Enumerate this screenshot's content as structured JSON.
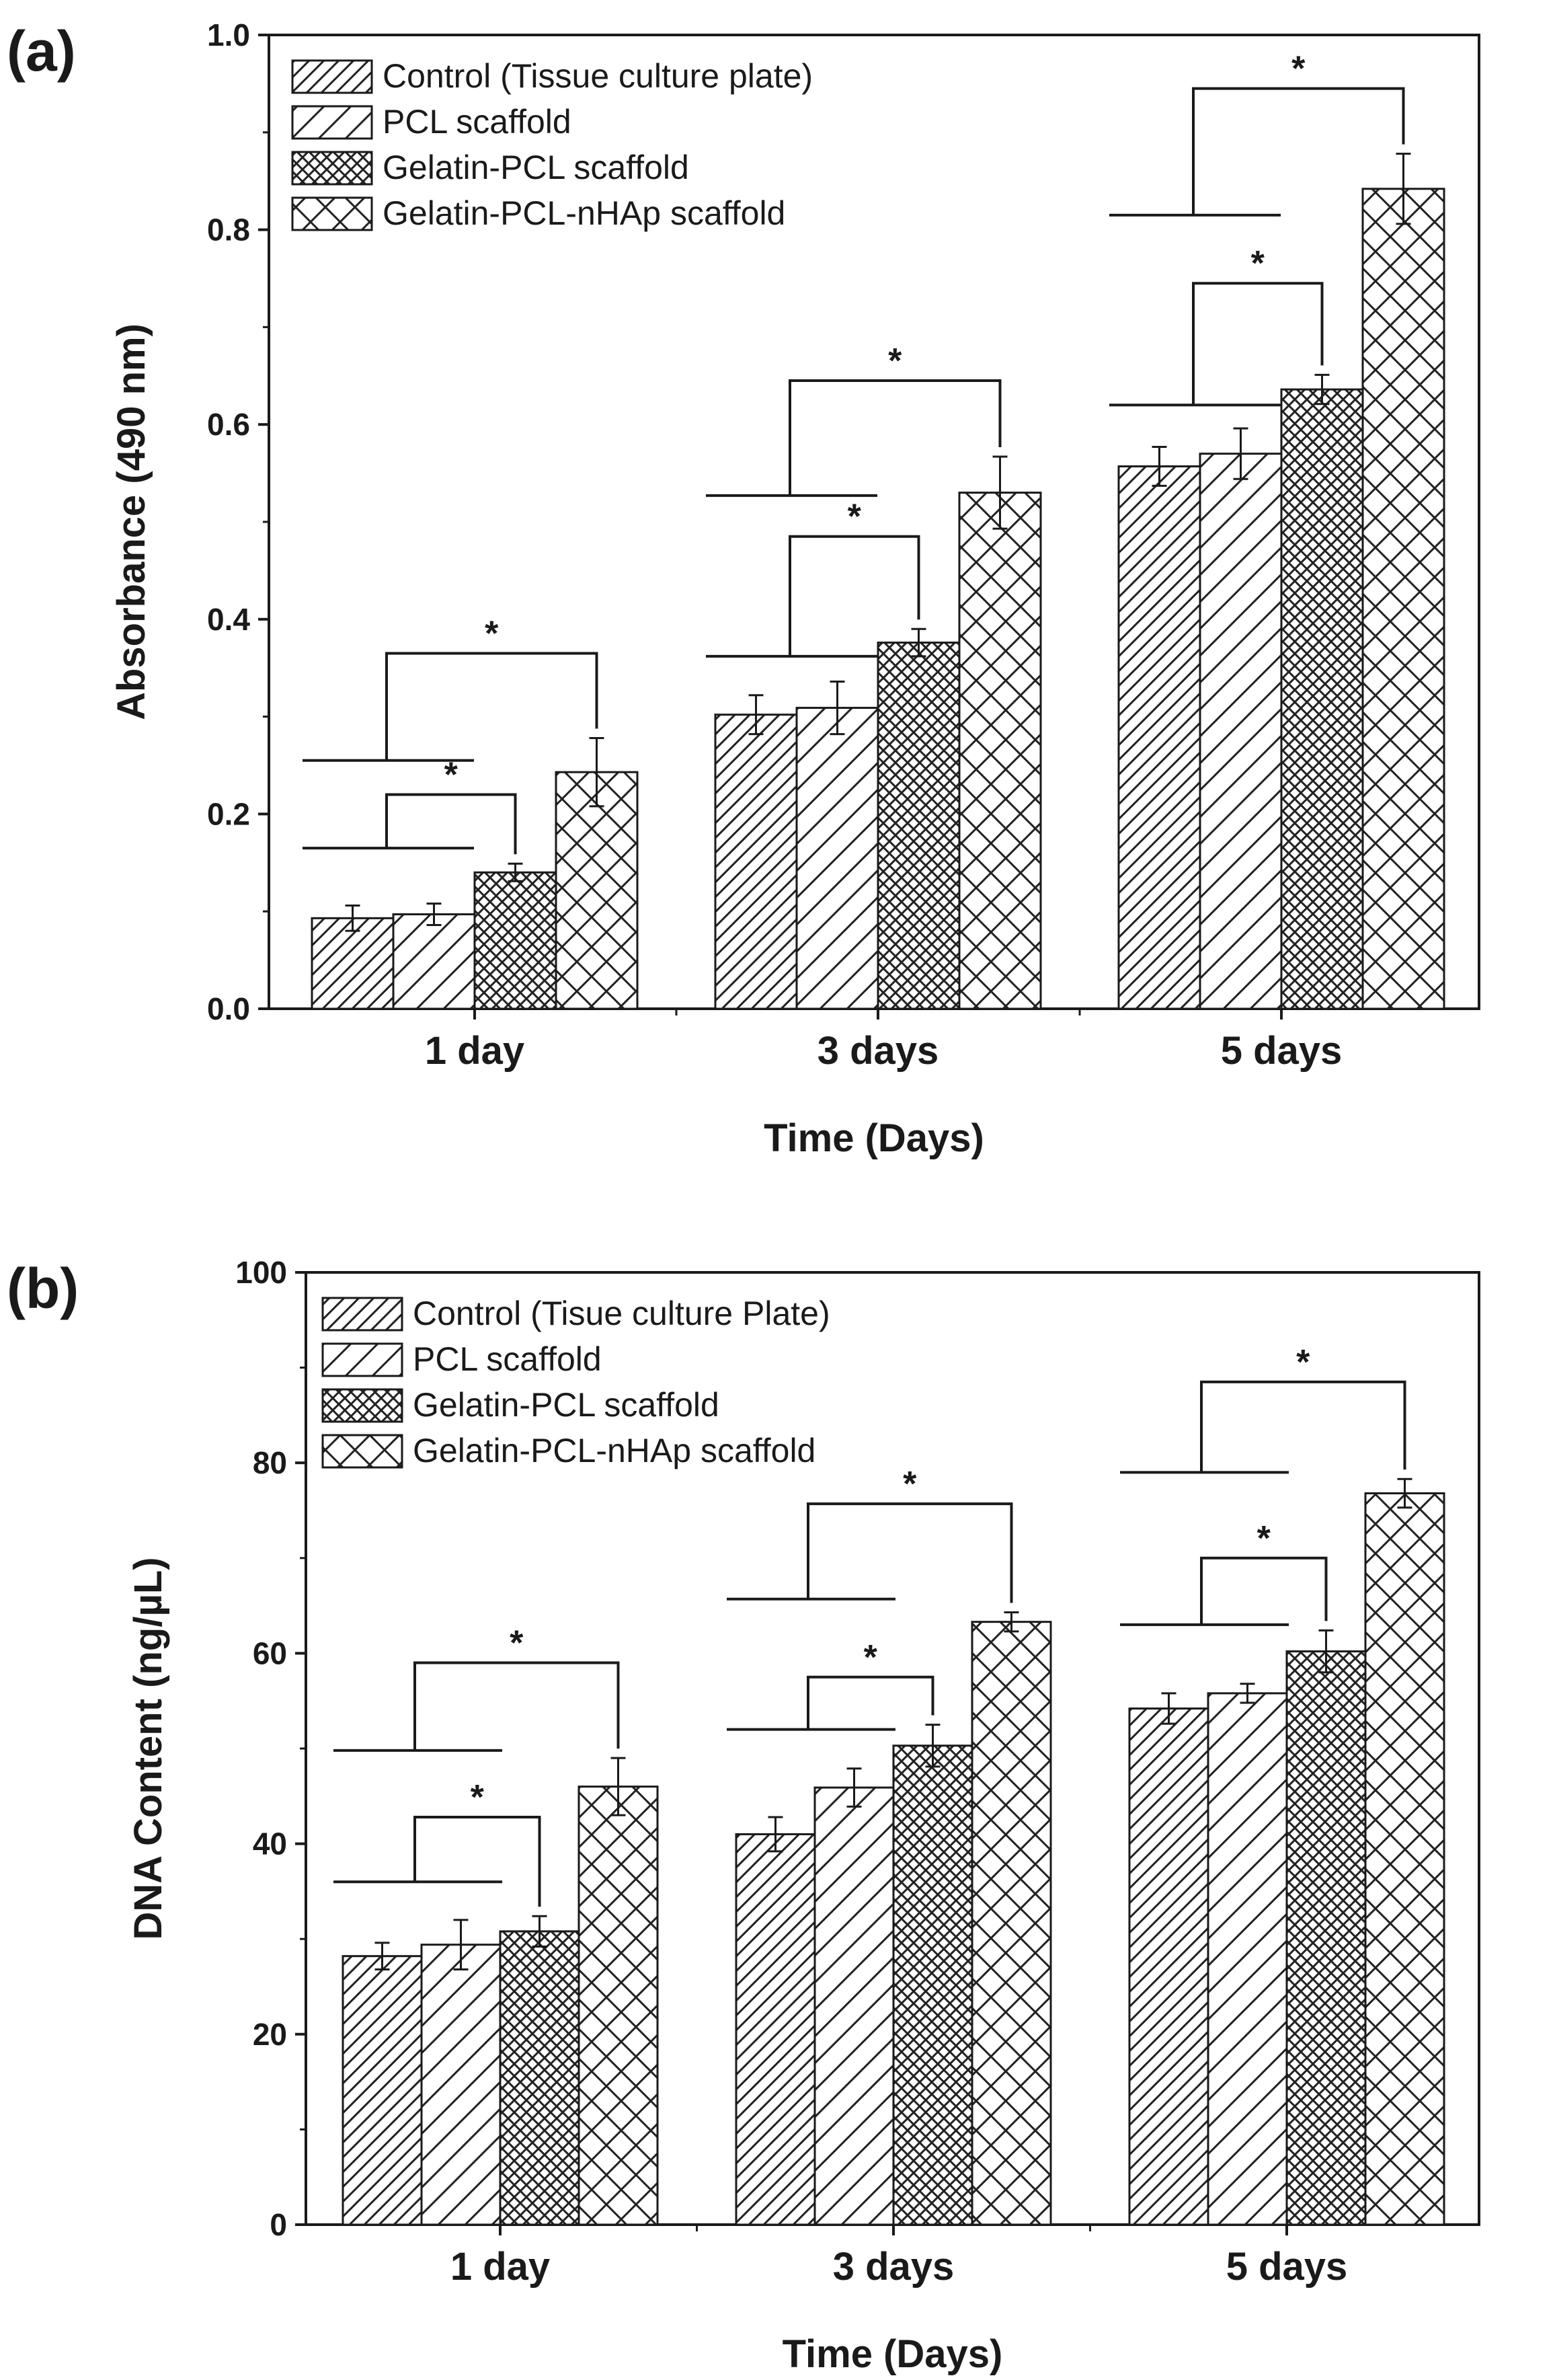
{
  "chart_data": [
    {
      "type": "bar",
      "panel_label": "(a)",
      "categories": [
        "1 day",
        "3 days",
        "5 days"
      ],
      "series": [
        {
          "name": "Control (Tissue culture plate)",
          "pattern": "hatch-dense",
          "values": [
            0.093,
            0.302,
            0.557
          ],
          "errors": [
            0.013,
            0.02,
            0.02
          ]
        },
        {
          "name": "PCL scaffold",
          "pattern": "hatch-sparse",
          "values": [
            0.097,
            0.309,
            0.57
          ],
          "errors": [
            0.011,
            0.027,
            0.026
          ]
        },
        {
          "name": "Gelatin-PCL scaffold",
          "pattern": "crosshatch-dense",
          "values": [
            0.14,
            0.376,
            0.636
          ],
          "errors": [
            0.009,
            0.014,
            0.015
          ]
        },
        {
          "name": "Gelatin-PCL-nHAp scaffold",
          "pattern": "crosshatch-sparse",
          "values": [
            0.243,
            0.53,
            0.842
          ],
          "errors": [
            0.035,
            0.037,
            0.036
          ]
        }
      ],
      "xlabel": "Time (Days)",
      "ylabel": "Absorbance (490 nm)",
      "ylim": [
        0.0,
        1.0
      ],
      "yticks": [
        0.0,
        0.2,
        0.4,
        0.6,
        0.8,
        1.0
      ],
      "ytick_labels": [
        "0.0",
        "0.2",
        "0.4",
        "0.6",
        "0.8",
        "1.0"
      ],
      "legend_position": "top-left",
      "significance": [
        {
          "category": 0,
          "from_series": 1,
          "to_series": 2,
          "level": 0.165,
          "bracket": 0.22,
          "label": "*"
        },
        {
          "category": 0,
          "from_series": 1,
          "to_series": 3,
          "level": 0.255,
          "bracket": 0.365,
          "label": "*"
        },
        {
          "category": 1,
          "from_series": 1,
          "to_series": 2,
          "level": 0.362,
          "bracket": 0.485,
          "label": "*"
        },
        {
          "category": 1,
          "from_series": 1,
          "to_series": 3,
          "level": 0.527,
          "bracket": 0.645,
          "label": "*"
        },
        {
          "category": 2,
          "from_series": 1,
          "to_series": 2,
          "level": 0.62,
          "bracket": 0.745,
          "label": "*"
        },
        {
          "category": 2,
          "from_series": 1,
          "to_series": 3,
          "level": 0.815,
          "bracket": 0.945,
          "label": "*"
        }
      ]
    },
    {
      "type": "bar",
      "panel_label": "(b)",
      "categories": [
        "1 day",
        "3 days",
        "5 days"
      ],
      "series": [
        {
          "name": "Control (Tisue culture Plate)",
          "pattern": "hatch-dense",
          "values": [
            28.2,
            41.0,
            54.2
          ],
          "errors": [
            1.4,
            1.8,
            1.6
          ]
        },
        {
          "name": "PCL scaffold",
          "pattern": "hatch-sparse",
          "values": [
            29.4,
            45.9,
            55.8
          ],
          "errors": [
            2.6,
            2.0,
            1.0
          ]
        },
        {
          "name": "Gelatin-PCL scaffold",
          "pattern": "crosshatch-dense",
          "values": [
            30.8,
            50.3,
            60.2
          ],
          "errors": [
            1.6,
            2.2,
            2.2
          ]
        },
        {
          "name": "Gelatin-PCL-nHAp scaffold",
          "pattern": "crosshatch-sparse",
          "values": [
            46.0,
            63.3,
            76.8
          ],
          "errors": [
            3.0,
            1.0,
            1.5
          ]
        }
      ],
      "xlabel": "Time (Days)",
      "ylabel": "DNA Content (ng/µL)",
      "ylim": [
        0,
        100
      ],
      "yticks": [
        0,
        20,
        40,
        60,
        80,
        100
      ],
      "ytick_labels": [
        "0",
        "20",
        "40",
        "60",
        "80",
        "100"
      ],
      "legend_position": "top-left",
      "significance": [
        {
          "category": 0,
          "from_series": 1,
          "to_series": 2,
          "level": 36.0,
          "bracket": 42.8,
          "label": "*"
        },
        {
          "category": 0,
          "from_series": 1,
          "to_series": 3,
          "level": 49.8,
          "bracket": 59.0,
          "label": "*"
        },
        {
          "category": 1,
          "from_series": 1,
          "to_series": 2,
          "level": 52.0,
          "bracket": 57.5,
          "label": "*"
        },
        {
          "category": 1,
          "from_series": 1,
          "to_series": 3,
          "level": 65.7,
          "bracket": 75.7,
          "label": "*"
        },
        {
          "category": 2,
          "from_series": 1,
          "to_series": 2,
          "level": 63.0,
          "bracket": 70.0,
          "label": "*"
        },
        {
          "category": 2,
          "from_series": 1,
          "to_series": 3,
          "level": 79.0,
          "bracket": 88.5,
          "label": "*"
        }
      ]
    }
  ]
}
